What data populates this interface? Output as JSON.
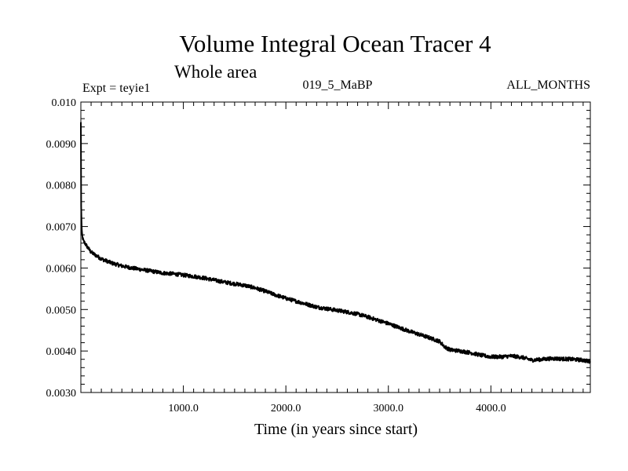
{
  "chart_data": {
    "type": "line",
    "title": "Volume Integral Ocean Tracer 4",
    "subtitle": "Whole area",
    "annotations": {
      "left": "Expt = teyie1",
      "center": "019_5_MaBP",
      "right": "ALL_MONTHS"
    },
    "xlabel": "Time (in years since start)",
    "ylabel": "",
    "xlim": [
      0,
      4970
    ],
    "ylim": [
      0.003,
      0.01
    ],
    "x_ticks": [
      1000,
      2000,
      3000,
      4000
    ],
    "x_tick_labels": [
      "1000.0",
      "2000.0",
      "3000.0",
      "4000.0"
    ],
    "y_ticks": [
      0.003,
      0.004,
      0.005,
      0.006,
      0.007,
      0.008,
      0.009,
      0.01
    ],
    "y_tick_labels": [
      "0.0030",
      "0.0040",
      "0.0050",
      "0.0060",
      "0.0070",
      "0.0080",
      "0.0090",
      "0.010"
    ],
    "grid": false,
    "series": [
      {
        "color": "#000000",
        "x": [
          0,
          3,
          8,
          15,
          25,
          40,
          60,
          100,
          150,
          200,
          300,
          400,
          500,
          600,
          700,
          800,
          900,
          1000,
          1100,
          1200,
          1300,
          1400,
          1500,
          1600,
          1700,
          1800,
          1900,
          2000,
          2100,
          2200,
          2300,
          2400,
          2500,
          2600,
          2700,
          2800,
          2900,
          3000,
          3100,
          3200,
          3300,
          3400,
          3500,
          3550,
          3600,
          3700,
          3800,
          3900,
          4000,
          4100,
          4200,
          4300,
          4400,
          4500,
          4600,
          4700,
          4800,
          4900,
          4970
        ],
        "y": [
          0.0095,
          0.0075,
          0.0069,
          0.00675,
          0.00665,
          0.0066,
          0.00652,
          0.00638,
          0.0063,
          0.00622,
          0.00612,
          0.00605,
          0.006,
          0.00596,
          0.00592,
          0.00588,
          0.00586,
          0.00583,
          0.0058,
          0.00576,
          0.00571,
          0.00566,
          0.00562,
          0.00558,
          0.00552,
          0.00544,
          0.00535,
          0.00527,
          0.0052,
          0.00513,
          0.00506,
          0.00502,
          0.00498,
          0.00494,
          0.00489,
          0.00482,
          0.00474,
          0.00466,
          0.00457,
          0.00448,
          0.0044,
          0.00432,
          0.00423,
          0.0041,
          0.00403,
          0.004,
          0.00396,
          0.0039,
          0.00386,
          0.00386,
          0.00388,
          0.00385,
          0.00378,
          0.0038,
          0.00382,
          0.00381,
          0.0038,
          0.00378,
          0.00374
        ]
      }
    ]
  }
}
